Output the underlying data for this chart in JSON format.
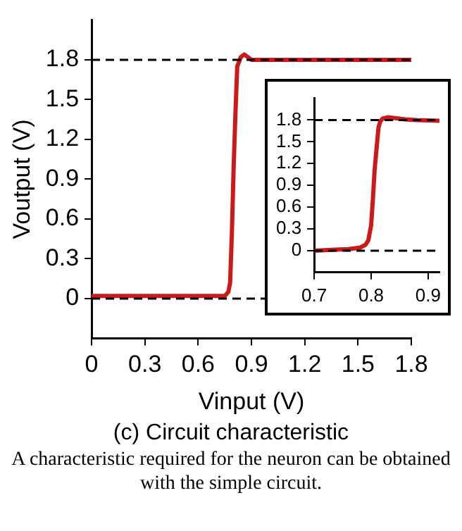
{
  "chart_data": [
    {
      "type": "line",
      "xlabel": "Vinput (V)",
      "ylabel": "Voutput (V)",
      "xlim": [
        0,
        1.8
      ],
      "xticks": [
        0,
        0.3,
        0.6,
        0.9,
        1.2,
        1.5,
        1.8
      ],
      "ylim": [
        -0.3,
        2.1
      ],
      "yticks": [
        0,
        0.3,
        0.6,
        0.9,
        1.2,
        1.5,
        1.8
      ],
      "grid": false,
      "series": [
        {
          "color": "#cc1a1a",
          "x": [
            0,
            0.3,
            0.6,
            0.75,
            0.77,
            0.78,
            0.79,
            0.8,
            0.81,
            0.82,
            0.84,
            0.86,
            0.9,
            1.2,
            1.5,
            1.8
          ],
          "values": [
            0.02,
            0.02,
            0.02,
            0.02,
            0.05,
            0.12,
            0.5,
            1.0,
            1.4,
            1.75,
            1.82,
            1.84,
            1.8,
            1.8,
            1.8,
            1.8
          ]
        }
      ],
      "ref_lines": [
        {
          "axis": "y",
          "value": 1.8,
          "line_style": "dashed",
          "color": "#000000"
        },
        {
          "axis": "y",
          "value": 0,
          "line_style": "dashed",
          "color": "#000000"
        }
      ],
      "annotations": [
        "(c) Circuit characteristic",
        "A characteristic required for the neuron can be obtained with the simple circuit."
      ]
    },
    {
      "type": "line",
      "xlim": [
        0.7,
        0.92
      ],
      "xticks": [
        0.7,
        0.8,
        0.9
      ],
      "ylim": [
        -0.3,
        2.1
      ],
      "yticks": [
        0,
        0.3,
        0.6,
        0.9,
        1.2,
        1.5,
        1.8
      ],
      "grid": false,
      "series": [
        {
          "color": "#cc1a1a",
          "x": [
            0.7,
            0.73,
            0.76,
            0.78,
            0.79,
            0.795,
            0.8,
            0.803,
            0.806,
            0.81,
            0.813,
            0.816,
            0.82,
            0.83,
            0.84,
            0.86,
            0.88,
            0.92
          ],
          "values": [
            0,
            0.01,
            0.02,
            0.04,
            0.08,
            0.14,
            0.35,
            0.7,
            1.1,
            1.45,
            1.7,
            1.78,
            1.82,
            1.84,
            1.83,
            1.81,
            1.8,
            1.79
          ]
        }
      ],
      "ref_lines": [
        {
          "axis": "y",
          "value": 1.8,
          "line_style": "dashed",
          "color": "#000000"
        },
        {
          "axis": "y",
          "value": 0,
          "line_style": "dashed",
          "color": "#000000"
        }
      ]
    }
  ]
}
